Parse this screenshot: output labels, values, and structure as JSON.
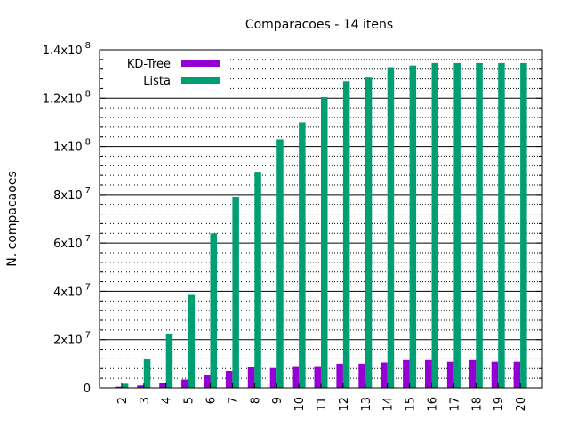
{
  "chart_data": {
    "type": "bar",
    "title": "Comparacoes - 14 itens",
    "ylabel": "N. compacaoes",
    "xlabel": "",
    "categories": [
      "2",
      "3",
      "4",
      "5",
      "6",
      "7",
      "8",
      "9",
      "10",
      "11",
      "12",
      "13",
      "14",
      "15",
      "16",
      "17",
      "18",
      "19",
      "20"
    ],
    "series": [
      {
        "name": "KD-Tree",
        "color": "#9400d3",
        "values": [
          500000,
          1000000,
          2000000,
          3500000,
          5500000,
          7000000,
          8500000,
          8200000,
          9000000,
          9000000,
          10000000,
          10000000,
          10500000,
          11500000,
          11500000,
          10800000,
          11500000,
          10800000,
          10800000
        ]
      },
      {
        "name": "Lista",
        "color": "#009e73",
        "values": [
          1700000,
          11800000,
          22500000,
          38500000,
          64000000,
          79000000,
          89500000,
          103000000,
          110000000,
          120500000,
          127000000,
          128500000,
          132800000,
          133500000,
          134500000,
          134500000,
          134500000,
          134500000,
          134500000
        ]
      }
    ],
    "ylim": [
      0,
      140000000
    ],
    "yticks": [
      {
        "base": "0",
        "exp": ""
      },
      {
        "base": "2x10",
        "exp": "7"
      },
      {
        "base": "4x10",
        "exp": "7"
      },
      {
        "base": "6x10",
        "exp": "7"
      },
      {
        "base": "8x10",
        "exp": "7"
      },
      {
        "base": "1x10",
        "exp": "8"
      },
      {
        "base": "1.2x10",
        "exp": "8"
      },
      {
        "base": "1.4x10",
        "exp": "8"
      }
    ],
    "grid": true,
    "legend_position": "top-left"
  }
}
